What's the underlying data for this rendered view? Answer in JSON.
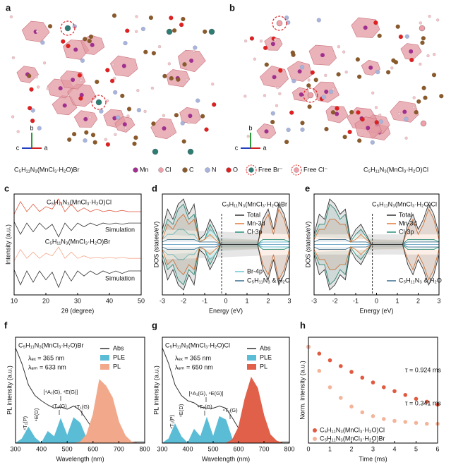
{
  "structures": {
    "panels": [
      {
        "letter": "a",
        "caption": "C₅H₁₁N₃(MnCl₃·H₂O)Br"
      },
      {
        "letter": "b",
        "caption": "C₅H₁₁N₃(MnCl₃·H₂O)Cl"
      }
    ],
    "axes": [
      "b",
      "c",
      "a"
    ],
    "legend": [
      {
        "label": "Mn",
        "color": "#a0308f"
      },
      {
        "label": "Cl",
        "color": "#f0a0a8"
      },
      {
        "label": "C",
        "color": "#8b5a2b"
      },
      {
        "label": "N",
        "color": "#a8b4dc"
      },
      {
        "label": "O",
        "color": "#e02020"
      },
      {
        "label": "Free Br⁻",
        "color": "#2e7d74"
      },
      {
        "label": "Free Cl⁻",
        "color": "#f0a0a8"
      }
    ]
  },
  "chart_data": [
    {
      "panel": "c",
      "type": "line",
      "x_label": "2θ (degree)",
      "y_label": "Intensity (a.u.)",
      "x": [
        10,
        12,
        14,
        16,
        18,
        20,
        22,
        24,
        26,
        28,
        30,
        32,
        34,
        36,
        38,
        40,
        42,
        44,
        46,
        48,
        50
      ],
      "xlim": [
        10,
        50
      ],
      "xticks": [
        10,
        20,
        30,
        40,
        50
      ],
      "ylim": [
        0,
        4
      ],
      "series": [
        {
          "name": "C₅H₁₁N₃(MnCl₃·H₂O)Cl",
          "color": "#e05a40",
          "values": [
            3.2,
            3.7,
            3.3,
            3.6,
            3.3,
            3.5,
            3.4,
            3.8,
            3.3,
            3.6,
            3.3,
            3.45,
            3.3,
            3.4,
            3.3,
            3.35,
            3.3,
            3.35,
            3.3,
            3.3,
            3.3
          ]
        },
        {
          "name": "Simulation",
          "color": "#333333",
          "values": [
            2.9,
            2.4,
            2.85,
            2.5,
            2.85,
            2.6,
            2.8,
            2.3,
            2.85,
            2.55,
            2.85,
            2.7,
            2.85,
            2.75,
            2.85,
            2.8,
            2.85,
            2.8,
            2.85,
            2.85,
            2.85
          ]
        },
        {
          "name": "C₅H₁₁N₃(MnCl₃·H₂O)Br",
          "color": "#f4a88a",
          "values": [
            1.35,
            1.8,
            1.45,
            1.7,
            1.45,
            1.65,
            1.55,
            1.9,
            1.45,
            1.7,
            1.45,
            1.55,
            1.45,
            1.5,
            1.45,
            1.5,
            1.45,
            1.5,
            1.45,
            1.45,
            1.45
          ]
        },
        {
          "name": "Simulation",
          "color": "#333333",
          "values": [
            1.0,
            0.4,
            0.95,
            0.5,
            0.95,
            0.6,
            0.9,
            0.3,
            0.95,
            0.55,
            0.95,
            0.75,
            0.95,
            0.8,
            0.95,
            0.85,
            0.95,
            0.85,
            0.95,
            0.95,
            0.95
          ]
        }
      ]
    },
    {
      "panel": "d",
      "type": "dos",
      "x_label": "Energy (eV)",
      "y_label": "DOS (states/eV)",
      "annotation": "C₅H₁₁N₃(MnCl₃·H₂O)Br",
      "x": [
        -3,
        -2.75,
        -2.5,
        -2.25,
        -2,
        -1.75,
        -1.5,
        -1.25,
        -1,
        -0.75,
        -0.5,
        -0.25,
        0,
        0.25,
        0.5,
        0.75,
        1,
        1.25,
        1.5,
        1.75,
        2,
        2.25,
        2.5,
        2.75,
        3
      ],
      "xlim": [
        -3,
        3
      ],
      "xticks": [
        -3,
        -2,
        -1,
        0,
        1,
        2,
        3
      ],
      "ylim": [
        -10,
        10
      ],
      "dashed_line_x": -0.2,
      "series": [
        {
          "name": "Total",
          "color": "#333333",
          "values": [
            3,
            7,
            5,
            8,
            9,
            6,
            8,
            1,
            2,
            5,
            3,
            0,
            0,
            0,
            0,
            0,
            0,
            0,
            0,
            5,
            7,
            3,
            8,
            6,
            2
          ]
        },
        {
          "name": "Mn-3d",
          "color": "#e07a3a",
          "values": [
            1,
            4,
            3,
            5,
            6,
            4,
            5,
            0.5,
            1,
            2,
            1,
            0,
            0,
            0,
            0,
            0,
            0,
            0,
            0,
            4,
            6,
            2,
            7,
            5,
            1
          ]
        },
        {
          "name": "Cl-3p",
          "color": "#2a8f7a",
          "values": [
            2,
            5,
            4,
            7,
            8,
            5,
            6,
            0.5,
            1,
            4,
            2,
            0,
            0,
            0,
            0,
            0,
            0,
            0,
            0,
            1,
            1,
            1,
            1,
            1,
            0.5
          ]
        },
        {
          "name": "Br-4p",
          "color": "#6cc6d8",
          "values": [
            1,
            2,
            2,
            3,
            3,
            2,
            2,
            0.5,
            1,
            3,
            2,
            0,
            0,
            0,
            0,
            0,
            0,
            0,
            0,
            0.5,
            0.5,
            0.5,
            0.5,
            0.5,
            0.5
          ]
        },
        {
          "name": "C₅H₁₁N₃ & H₂O",
          "color": "#3a6e8f",
          "values": [
            0.5,
            1,
            1,
            1,
            1,
            1,
            1,
            0.5,
            0.5,
            0.5,
            0.5,
            0,
            0,
            0,
            0,
            0,
            0,
            0,
            0,
            0.5,
            0.5,
            0.5,
            0.5,
            0.5,
            0.5
          ]
        }
      ]
    },
    {
      "panel": "e",
      "type": "dos",
      "x_label": "Energy (eV)",
      "y_label": "DOS (states/eV)",
      "annotation": "C₅H₁₁N₃(MnCl₃·H₂O)Cl",
      "x": [
        -3,
        -2.75,
        -2.5,
        -2.25,
        -2,
        -1.75,
        -1.5,
        -1.25,
        -1,
        -0.75,
        -0.5,
        -0.25,
        0,
        0.25,
        0.5,
        0.75,
        1,
        1.25,
        1.5,
        1.75,
        2,
        2.25,
        2.5,
        2.75,
        3
      ],
      "xlim": [
        -3,
        3
      ],
      "xticks": [
        -3,
        -2,
        -1,
        0,
        1,
        2,
        3
      ],
      "ylim": [
        -10,
        10
      ],
      "dashed_line_x": -0.2,
      "series": [
        {
          "name": "Total",
          "color": "#333333",
          "values": [
            2,
            6,
            5,
            9,
            8,
            6,
            7,
            1,
            3,
            4,
            2,
            0,
            0,
            0,
            0,
            0,
            0,
            0,
            4,
            6,
            3,
            5,
            8,
            6,
            2
          ]
        },
        {
          "name": "Mn-3d",
          "color": "#e07a3a",
          "values": [
            1,
            3,
            3,
            5,
            5,
            4,
            4,
            0.5,
            1,
            2,
            1,
            0,
            0,
            0,
            0,
            0,
            0,
            0,
            3,
            5,
            2,
            4,
            7,
            5,
            1
          ]
        },
        {
          "name": "Cl-3p",
          "color": "#2a8f7a",
          "values": [
            1.5,
            4,
            4,
            8,
            7,
            5,
            6,
            0.5,
            2,
            3,
            1.5,
            0,
            0,
            0,
            0,
            0,
            0,
            0,
            1,
            1,
            1,
            1,
            1,
            1,
            0.5
          ]
        },
        {
          "name": "C₅H₁₁N₃ & H₂O",
          "color": "#3a6e8f",
          "values": [
            0.5,
            1,
            1,
            1,
            1,
            1,
            1,
            0.5,
            0.5,
            0.5,
            0.5,
            0,
            0,
            0,
            0,
            0,
            0,
            0,
            0.5,
            0.5,
            0.5,
            0.5,
            0.5,
            0.5,
            0.5
          ]
        }
      ]
    },
    {
      "panel": "f",
      "type": "spectrum",
      "x_label": "Wavelength (nm)",
      "y_label": "PL intensity (a.u.)",
      "annotations": [
        "C₅H₁₁N₃(MnCl₃·H₂O)Br",
        "λₑₓ = 365 nm",
        "λₑₘ = 633 nm"
      ],
      "peak_labels": [
        "⁴T₁(P)",
        "⁴E(D)",
        "[⁴A₁(G), ⁴E(G)]",
        "⁴T₂(G)",
        "⁴T₁(G)"
      ],
      "x": [
        300,
        325,
        350,
        375,
        400,
        425,
        450,
        475,
        500,
        525,
        550,
        575,
        600,
        625,
        650,
        675,
        700,
        725,
        750,
        775,
        800
      ],
      "xlim": [
        300,
        800
      ],
      "xticks": [
        300,
        400,
        500,
        600,
        700,
        800
      ],
      "ylim": [
        0,
        10
      ],
      "series": [
        {
          "name": "Abs",
          "color": "#333333",
          "fill": false,
          "values": [
            9,
            7.5,
            5.5,
            4.5,
            4,
            3.6,
            3.3,
            3.4,
            3.2,
            3.5,
            3.1,
            2.2,
            1.3,
            0.6,
            0.3,
            0.2,
            0.1,
            0.1,
            0.1,
            0.1,
            0.1
          ]
        },
        {
          "name": "PLE",
          "color": "#5bbcd6",
          "fill": true,
          "values": [
            0,
            0.4,
            1.5,
            0.5,
            0,
            1.1,
            0.6,
            2.3,
            0.7,
            2.4,
            1.9,
            0.4,
            0,
            0,
            0,
            0,
            0,
            0,
            0,
            0,
            0
          ]
        },
        {
          "name": "PL",
          "color": "#f2a88a",
          "fill": true,
          "values": [
            0,
            0,
            0,
            0,
            0,
            0,
            0,
            0,
            0,
            0,
            0.1,
            0.8,
            2.7,
            6,
            5.4,
            4.3,
            2,
            0.7,
            0.1,
            0,
            0
          ]
        }
      ]
    },
    {
      "panel": "g",
      "type": "spectrum",
      "x_label": "Wavelength (nm)",
      "y_label": "PL intensity (a.u.)",
      "annotations": [
        "C₅H₁₁N₃(MnCl₃·H₂O)Cl",
        "λₑₓ = 365 nm",
        "λₑₘ = 650 nm"
      ],
      "peak_labels": [
        "⁴T₁(P)",
        "⁴E(D)",
        "[⁴A₁(G), ⁴E(G)]",
        "⁴T₂(G)",
        "⁴T₁(G)"
      ],
      "x": [
        300,
        325,
        350,
        375,
        400,
        425,
        450,
        475,
        500,
        525,
        550,
        575,
        600,
        625,
        650,
        675,
        700,
        725,
        750,
        775,
        800
      ],
      "xlim": [
        300,
        800
      ],
      "xticks": [
        300,
        400,
        500,
        600,
        700,
        800
      ],
      "ylim": [
        0,
        10
      ],
      "series": [
        {
          "name": "Abs",
          "color": "#333333",
          "fill": false,
          "values": [
            9,
            7.5,
            5.5,
            4.5,
            4,
            3.8,
            3.4,
            3.3,
            3.3,
            3.5,
            3.3,
            2.4,
            1.4,
            0.7,
            0.3,
            0.2,
            0.1,
            0.1,
            0.1,
            0.1,
            0.1
          ]
        },
        {
          "name": "PLE",
          "color": "#5bbcd6",
          "fill": true,
          "values": [
            0,
            0.4,
            1.8,
            0.6,
            0,
            1.3,
            0.6,
            2.4,
            0.6,
            2.5,
            2.2,
            0.4,
            0,
            0,
            0,
            0,
            0,
            0,
            0,
            0,
            0
          ]
        },
        {
          "name": "PL",
          "color": "#e0604a",
          "fill": true,
          "values": [
            0,
            0,
            0,
            0,
            0,
            0,
            0,
            0,
            0,
            0,
            0,
            0.3,
            1.5,
            4.2,
            6.2,
            5.2,
            2.6,
            0.8,
            0.2,
            0,
            0
          ]
        }
      ]
    },
    {
      "panel": "h",
      "type": "scatter",
      "x_label": "Time (ms)",
      "y_label": "Norm. intensity (a.u.)",
      "annotations": [
        "τ = 0.924 ms",
        "τ = 0.341 ms"
      ],
      "x": [
        0,
        0.5,
        1,
        1.5,
        2,
        2.5,
        3,
        3.5,
        4,
        4.5,
        5,
        5.5,
        6
      ],
      "xlim": [
        0,
        6
      ],
      "xticks": [
        0,
        1,
        2,
        3,
        4,
        5,
        6
      ],
      "ylim": [
        0,
        1.1
      ],
      "series": [
        {
          "name": "C₅H₁₁N₃(MnCl₃·H₂O)Cl",
          "color": "#e05a40",
          "values": [
            1.0,
            0.93,
            0.86,
            0.8,
            0.74,
            0.68,
            0.63,
            0.58,
            0.54,
            0.5,
            0.46,
            0.43,
            0.4
          ]
        },
        {
          "name": "C₅H₁₁N₃(MnCl₃·H₂O)Br",
          "color": "#f4b49a",
          "values": [
            1.0,
            0.75,
            0.58,
            0.47,
            0.38,
            0.32,
            0.28,
            0.25,
            0.23,
            0.22,
            0.21,
            0.2,
            0.2
          ]
        }
      ]
    }
  ]
}
